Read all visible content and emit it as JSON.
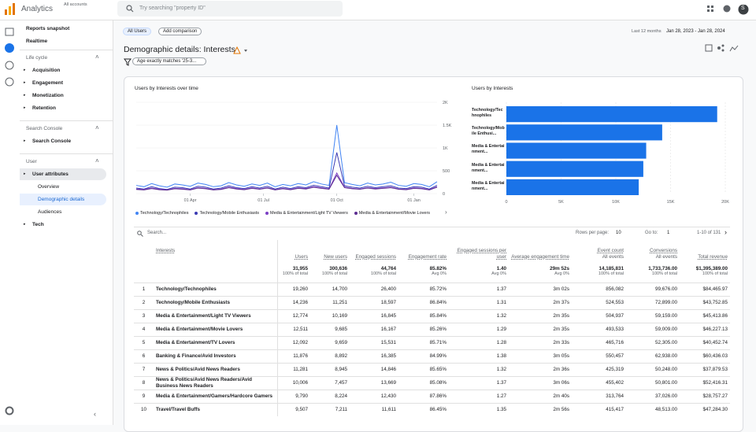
{
  "topbar": {
    "product": "Analytics",
    "account": "All accounts",
    "search_placeholder": "Try searching \"property ID\"",
    "avatar": "S"
  },
  "sidebar": {
    "top": [
      "Reports snapshot",
      "Realtime"
    ],
    "sections": [
      {
        "title": "Life cycle",
        "items": [
          "Acquisition",
          "Engagement",
          "Monetization",
          "Retention"
        ]
      },
      {
        "title": "Search Console",
        "items": [
          "Search Console"
        ]
      },
      {
        "title": "User",
        "items": [
          "User attributes",
          "Overview",
          "Demographic details",
          "Audiences",
          "Tech"
        ]
      }
    ]
  },
  "header": {
    "segment": "All Users",
    "add_comparison": "Add comparison",
    "date_label": "Last 12 months",
    "date_range": "Jan 28, 2023 - Jan 28, 2024",
    "title": "Demographic details: Interests",
    "filter": "Age exactly matches '25-3..."
  },
  "line_chart": {
    "type": "line",
    "title": "Users by Interests over time",
    "xlim": [
      0,
      39
    ],
    "xticks": [
      {
        "value": 7,
        "label": "01 Apr"
      },
      {
        "value": 16.5,
        "label": "01 Jul"
      },
      {
        "value": 26,
        "label": "01 Oct"
      },
      {
        "value": 36,
        "label": "01 Jan"
      }
    ],
    "ylim": [
      0,
      2000
    ],
    "yticks": [
      0,
      500,
      {
        "value": 1000,
        "label": "1K"
      },
      {
        "value": 1500,
        "label": "1.5K"
      },
      {
        "value": 2000,
        "label": "2K"
      }
    ],
    "series": [
      {
        "name": "Technology/Technophiles",
        "color": "#4285f4",
        "values": [
          180,
          150,
          220,
          170,
          140,
          210,
          190,
          160,
          230,
          200,
          150,
          170,
          240,
          190,
          160,
          210,
          180,
          230,
          150,
          200,
          170,
          220,
          190,
          260,
          210,
          180,
          1500,
          240,
          200,
          170,
          230,
          190,
          210,
          250,
          180,
          160,
          220,
          200,
          150,
          260
        ]
      },
      {
        "name": "Technology/Mobile Enthusiasts",
        "color": "#3b3bb3",
        "values": [
          120,
          100,
          150,
          110,
          90,
          140,
          130,
          100,
          160,
          140,
          100,
          120,
          170,
          130,
          110,
          150,
          120,
          160,
          100,
          140,
          110,
          150,
          130,
          180,
          150,
          120,
          900,
          170,
          140,
          120,
          160,
          130,
          150,
          170,
          120,
          110,
          150,
          140,
          100,
          180
        ]
      },
      {
        "name": "Media & Entertainment/Light TV Viewers",
        "color": "#7b3fc4",
        "values": [
          100,
          90,
          120,
          95,
          80,
          115,
          105,
          85,
          130,
          115,
          85,
          100,
          140,
          110,
          90,
          125,
          100,
          130,
          85,
          115,
          90,
          125,
          110,
          150,
          125,
          100,
          450,
          140,
          115,
          100,
          130,
          110,
          125,
          140,
          100,
          90,
          125,
          115,
          85,
          150
        ]
      },
      {
        "name": "Media & Entertainment/Movie Lovers",
        "color": "#5c2d91",
        "values": [
          90,
          80,
          110,
          85,
          75,
          105,
          95,
          80,
          120,
          105,
          80,
          90,
          130,
          100,
          85,
          115,
          95,
          120,
          80,
          105,
          85,
          115,
          100,
          140,
          115,
          95,
          400,
          130,
          105,
          95,
          120,
          100,
          115,
          130,
          95,
          85,
          115,
          105,
          80,
          140
        ]
      }
    ]
  },
  "bar_chart": {
    "type": "bar",
    "orientation": "horizontal",
    "title": "Users by Interests",
    "color": "#1a73e8",
    "categories": [
      "Technology/Technophiles",
      "Technology/Mobile Enthusi...",
      "Media & Entertainment...",
      "Media & Entertainment...",
      "Media & Entertainment..."
    ],
    "values": [
      19260,
      14236,
      12774,
      12511,
      12092
    ],
    "xlim": [
      0,
      20000
    ],
    "xticks": [
      0,
      {
        "value": 5000,
        "label": "5K"
      },
      {
        "value": 10000,
        "label": "10K"
      },
      {
        "value": 15000,
        "label": "15K"
      },
      {
        "value": 20000,
        "label": "20K"
      }
    ]
  },
  "table": {
    "search": "Search...",
    "rows_per_page_label": "Rows per page:",
    "rows_per_page": "10",
    "goto_label": "Go to:",
    "goto": "1",
    "page_range": "1-10 of 131",
    "columns": [
      "Interests",
      "Users",
      "New users",
      "Engaged sessions",
      "Engagement rate",
      "Engaged sessions per user",
      "Average engagement time",
      "Event count",
      "Conversions",
      "Total revenue"
    ],
    "column_subtitles": {
      "7": "All events",
      "8": "All events"
    },
    "totals": [
      "31,955",
      "300,636",
      "44,764",
      "85.82%",
      "1.40",
      "29m 52s",
      "14,185,831",
      "1,733,736.00",
      "$1,395,389.00"
    ],
    "totals_notes": [
      "100% of total",
      "100% of total",
      "100% of total",
      "Avg 0%",
      "Avg 0%",
      "Avg 0%",
      "100% of total",
      "100% of total",
      "100% of total"
    ],
    "rows": [
      [
        "1",
        "Technology/Technophiles",
        "19,260",
        "14,700",
        "26,400",
        "85.72%",
        "1.37",
        "3m 02s",
        "856,082",
        "99,676.00",
        "$84,465.97"
      ],
      [
        "2",
        "Technology/Mobile Enthusiasts",
        "14,236",
        "11,251",
        "18,597",
        "86.84%",
        "1.31",
        "2m 37s",
        "524,553",
        "72,899.00",
        "$43,752.85"
      ],
      [
        "3",
        "Media & Entertainment/Light TV Viewers",
        "12,774",
        "10,169",
        "16,845",
        "85.84%",
        "1.32",
        "2m 35s",
        "504,937",
        "59,159.00",
        "$45,413.86"
      ],
      [
        "4",
        "Media & Entertainment/Movie Lovers",
        "12,511",
        "9,685",
        "16,167",
        "85.26%",
        "1.29",
        "2m 35s",
        "493,533",
        "59,009.00",
        "$46,227.13"
      ],
      [
        "5",
        "Media & Entertainment/TV Lovers",
        "12,092",
        "9,659",
        "15,531",
        "85.71%",
        "1.28",
        "2m 33s",
        "465,716",
        "52,305.00",
        "$40,452.74"
      ],
      [
        "6",
        "Banking & Finance/Avid Investors",
        "11,876",
        "8,892",
        "16,385",
        "84.99%",
        "1.38",
        "3m 05s",
        "550,457",
        "62,938.00",
        "$60,436.03"
      ],
      [
        "7",
        "News & Politics/Avid News Readers",
        "11,281",
        "8,945",
        "14,846",
        "85.65%",
        "1.32",
        "2m 36s",
        "425,319",
        "50,248.00",
        "$37,879.53"
      ],
      [
        "8",
        "News & Politics/Avid News Readers/Avid Business News Readers",
        "10,006",
        "7,457",
        "13,669",
        "85.08%",
        "1.37",
        "3m 06s",
        "455,402",
        "50,801.00",
        "$52,416.31"
      ],
      [
        "9",
        "Media & Entertainment/Gamers/Hardcore Gamers",
        "9,790",
        "8,224",
        "12,430",
        "87.86%",
        "1.27",
        "2m 40s",
        "313,764",
        "37,026.00",
        "$28,757.27"
      ],
      [
        "10",
        "Travel/Travel Buffs",
        "9,507",
        "7,211",
        "11,611",
        "86.45%",
        "1.35",
        "2m 56s",
        "415,417",
        "48,513.00",
        "$47,284.30"
      ]
    ]
  }
}
